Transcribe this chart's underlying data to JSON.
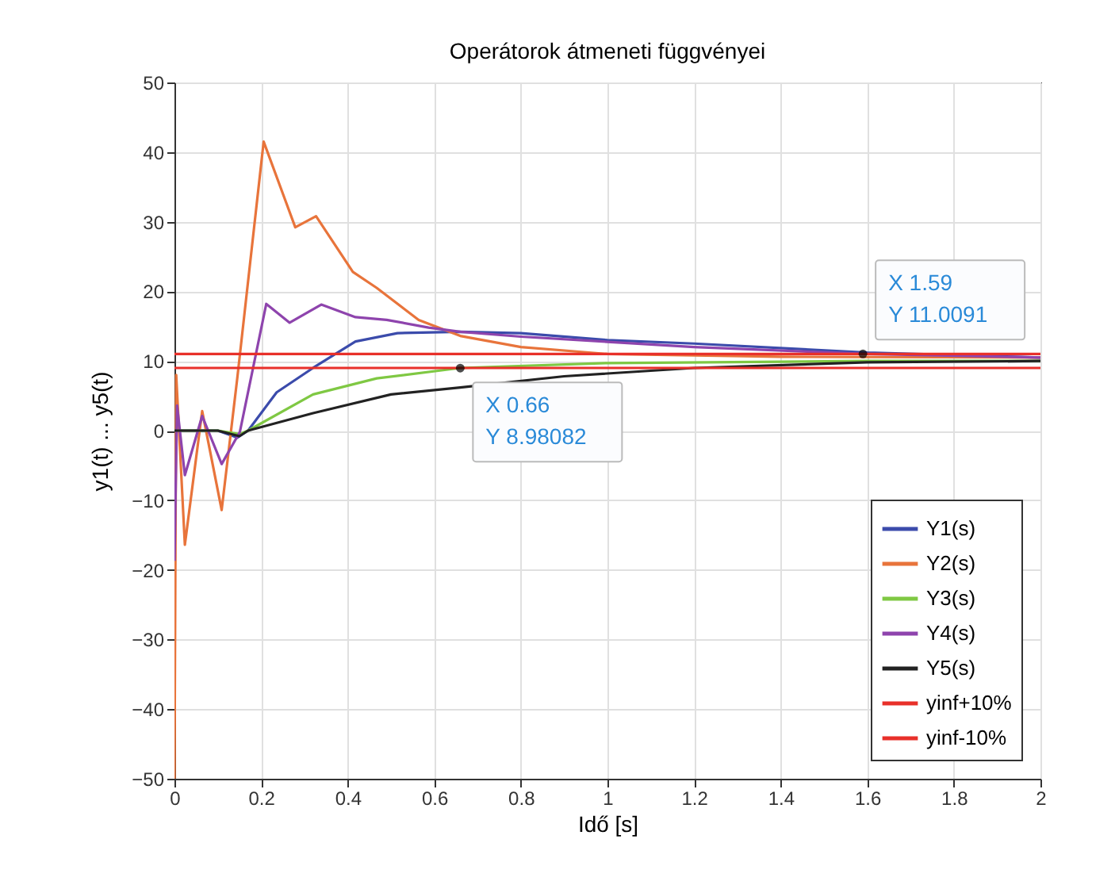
{
  "chart_data": {
    "type": "line",
    "title": "Operátorok átmeneti függvényei",
    "xlabel": "Idő [s]",
    "ylabel": "y1(t) ... y5(t)",
    "xlim": [
      0,
      2
    ],
    "ylim": [
      -50,
      50
    ],
    "xticks": [
      0,
      0.2,
      0.4,
      0.6,
      0.8,
      1,
      1.2,
      1.4,
      1.6,
      1.8,
      2
    ],
    "yticks": [
      -50,
      -40,
      -30,
      -20,
      -10,
      0,
      10,
      20,
      30,
      40,
      50
    ],
    "grid": true,
    "legend": "bottom right",
    "line_style": "solid",
    "series": [
      {
        "name": "Y1(s)",
        "color": "#3b4bab",
        "x": [
          0,
          0.1,
          0.145,
          0.17,
          0.236,
          0.32,
          0.418,
          0.515,
          0.66,
          0.8,
          1.0,
          1.2,
          1.6,
          2.0
        ],
        "values": [
          0,
          0,
          -1,
          0,
          5.5,
          9,
          12.8,
          14,
          14.2,
          14,
          13,
          12.5,
          11.2,
          10.5
        ]
      },
      {
        "name": "Y2(s)",
        "color": "#e8743b",
        "x": [
          0,
          0.004,
          0.024,
          0.064,
          0.109,
          0.145,
          0.206,
          0.279,
          0.327,
          0.412,
          0.467,
          0.564,
          0.66,
          0.8,
          1.0,
          1.4,
          2.0
        ],
        "values": [
          -50,
          8,
          -16.4,
          2.8,
          -11.4,
          7.5,
          41.5,
          29.2,
          30.8,
          22.8,
          20.5,
          15.9,
          13.6,
          12,
          11,
          10.6,
          10.5
        ]
      },
      {
        "name": "Y3(s)",
        "color": "#7fc843",
        "x": [
          0,
          0.1,
          0.15,
          0.17,
          0.32,
          0.467,
          0.66,
          1.0,
          1.6,
          2.0
        ],
        "values": [
          0,
          0,
          -0.5,
          0,
          5.2,
          7.5,
          9,
          9.7,
          10,
          10
        ]
      },
      {
        "name": "Y4(s)",
        "color": "#8e44ad",
        "x": [
          0,
          0.006,
          0.024,
          0.064,
          0.109,
          0.151,
          0.212,
          0.266,
          0.339,
          0.418,
          0.49,
          0.587,
          0.66,
          0.8,
          1.2,
          1.6,
          2.0
        ],
        "values": [
          -18.7,
          3.6,
          -6.4,
          2.1,
          -4.8,
          -0.2,
          18.2,
          15.5,
          18.1,
          16.3,
          15.9,
          14.8,
          14.2,
          13.5,
          12,
          11,
          10.5
        ]
      },
      {
        "name": "Y5(s)",
        "color": "#222222",
        "x": [
          0,
          0.1,
          0.15,
          0.17,
          0.32,
          0.5,
          0.66,
          0.9,
          1.2,
          1.6,
          2.0
        ],
        "values": [
          0,
          0,
          -0.8,
          0,
          2.5,
          5.2,
          6.2,
          7.8,
          9,
          9.8,
          10
        ]
      }
    ],
    "ref_lines": [
      {
        "axis": "y",
        "value": 11,
        "label": "yinf+10%",
        "color": "#e8302a"
      },
      {
        "axis": "y",
        "value": 9,
        "label": "yinf-10%",
        "color": "#e8302a"
      }
    ],
    "annotations": [
      {
        "text": "X 0.66\nY 8.98082",
        "x": 0.66,
        "y": 8.98082
      },
      {
        "text": "X 1.59\nY 11.0091",
        "x": 1.59,
        "y": 11.0091
      }
    ]
  }
}
